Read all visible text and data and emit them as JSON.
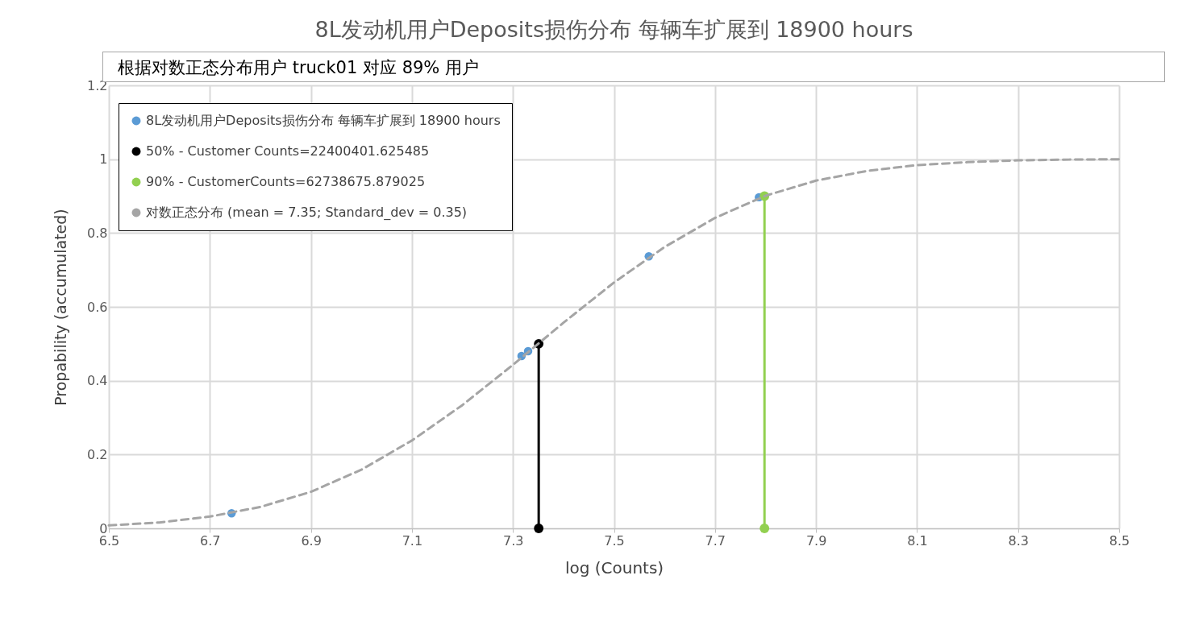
{
  "chart_data": {
    "type": "line",
    "title": "8L发动机用户Deposits损伤分布 每辆车扩展到 18900 hours",
    "xlabel": "log (Counts)",
    "ylabel": "Propability (accumulated)",
    "annotations": [
      "根据对数正态分布用户 truck01 对应 89% 用户"
    ],
    "xlim": [
      6.5,
      8.5
    ],
    "xticks": [
      6.5,
      6.7,
      6.9,
      7.1,
      7.3,
      7.5,
      7.7,
      7.9,
      8.1,
      8.3,
      8.5
    ],
    "ylim": [
      0,
      1.2
    ],
    "yticks": [
      0,
      0.2,
      0.4,
      0.6,
      0.8,
      1,
      1.2
    ],
    "grid": true,
    "legend": "top left",
    "series": [
      {
        "name": "8L发动机用户Deposits损伤分布 每辆车扩展到 18900 hours",
        "type": "scatter",
        "marker": "circle",
        "color": "#5b9bd5",
        "x": [
          6.743,
          7.317,
          7.33,
          7.569,
          7.787
        ],
        "values": [
          0.041,
          0.467,
          0.48,
          0.737,
          0.897
        ]
      },
      {
        "name": "50% - Customer Counts=22400401.625485",
        "type": "line",
        "marker": "circle",
        "line_style": "solid",
        "color": "#000000",
        "x": [
          7.351,
          7.351
        ],
        "values": [
          0,
          0.5
        ]
      },
      {
        "name": "90% - CustomerCounts=62738675.879025",
        "type": "line",
        "marker": "circle",
        "line_style": "solid",
        "color": "#92d050",
        "x": [
          7.798,
          7.798
        ],
        "values": [
          0,
          0.9
        ]
      },
      {
        "name": "对数正态分布 (mean = 7.35; Standard_dev = 0.35)",
        "marker": "none",
        "line_style": "dashed",
        "color": "#a5a5a5",
        "x": [
          6.5,
          6.6,
          6.7,
          6.8,
          6.9,
          7.0,
          7.1,
          7.2,
          7.3,
          7.4,
          7.5,
          7.6,
          7.7,
          7.8,
          7.9,
          8.0,
          8.1,
          8.2,
          8.3,
          8.4,
          8.5
        ],
        "values": [
          0.008,
          0.016,
          0.032,
          0.058,
          0.099,
          0.159,
          0.238,
          0.334,
          0.443,
          0.557,
          0.666,
          0.762,
          0.841,
          0.901,
          0.942,
          0.968,
          0.984,
          0.992,
          0.997,
          0.999,
          1.0
        ]
      }
    ]
  }
}
